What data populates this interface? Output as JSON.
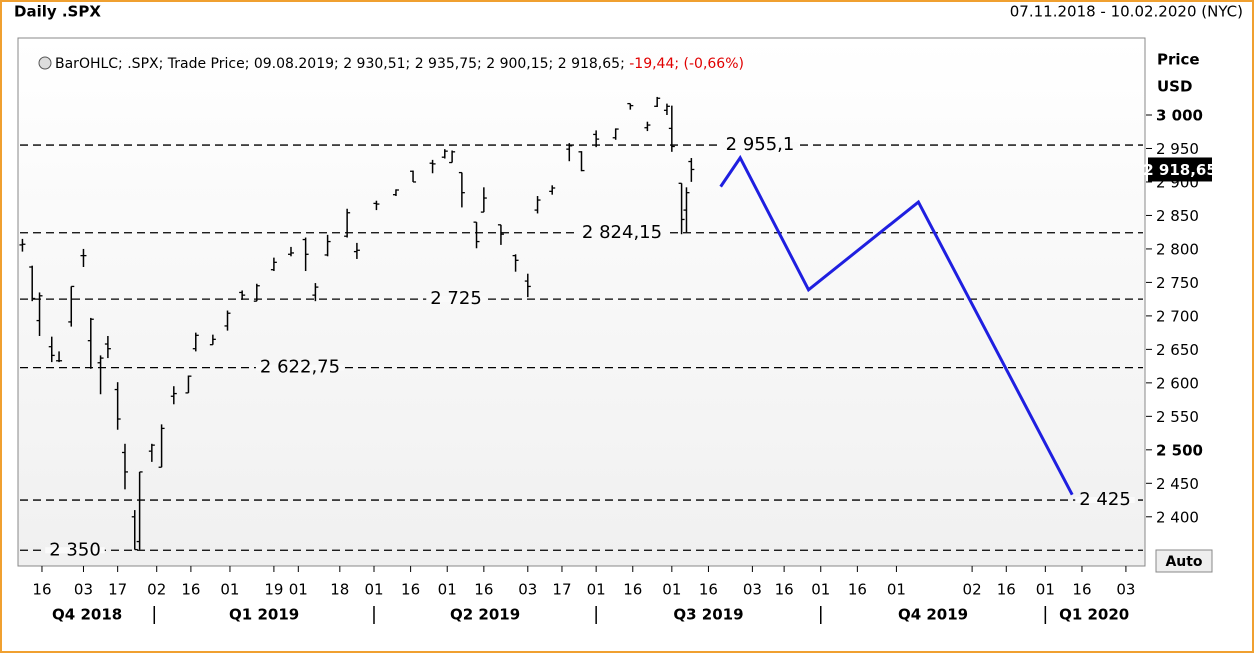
{
  "chart_data": {
    "type": "ohlc",
    "title": "Daily .SPX",
    "date_range": "07.11.2018 - 10.02.2020 (NYC)",
    "legend_text": "BarOHLC; .SPX; Trade Price; 09.08.2019; 2 930,51; 2 935,75; 2 900,15; 2 918,65; ",
    "legend_change": "-19,44; (-0,66%)",
    "axis_title": "Price",
    "axis_unit": "USD",
    "auto_button": "Auto",
    "last_price": {
      "value": 2918.65,
      "label": "2 918,65"
    },
    "color": "#000000",
    "xlim": [
      "2018-11-07",
      "2020-02-10"
    ],
    "ylim": [
      2328,
      3112
    ],
    "yticks": [
      {
        "value": 2400,
        "label": "2 400"
      },
      {
        "value": 2450,
        "label": "2 450"
      },
      {
        "value": 2500,
        "label": "2 500"
      },
      {
        "value": 2550,
        "label": "2 550"
      },
      {
        "value": 2600,
        "label": "2 600"
      },
      {
        "value": 2650,
        "label": "2 650"
      },
      {
        "value": 2700,
        "label": "2 700"
      },
      {
        "value": 2750,
        "label": "2 750"
      },
      {
        "value": 2800,
        "label": "2 800"
      },
      {
        "value": 2850,
        "label": "2 850"
      },
      {
        "value": 2900,
        "label": "2 900"
      },
      {
        "value": 2950,
        "label": "2 950"
      },
      {
        "value": 3000,
        "label": "3 000"
      }
    ],
    "xticks": [
      {
        "value": "2018-11-16",
        "label": "16"
      },
      {
        "value": "2018-12-03",
        "label": "03"
      },
      {
        "value": "2018-12-17",
        "label": "17"
      },
      {
        "value": "2019-01-02",
        "label": "02"
      },
      {
        "value": "2019-01-16",
        "label": "16"
      },
      {
        "value": "2019-02-01",
        "label": "01"
      },
      {
        "value": "2019-02-19",
        "label": "19"
      },
      {
        "value": "2019-03-01",
        "label": "01"
      },
      {
        "value": "2019-03-18",
        "label": "18"
      },
      {
        "value": "2019-04-01",
        "label": "01"
      },
      {
        "value": "2019-04-16",
        "label": "16"
      },
      {
        "value": "2019-05-01",
        "label": "01"
      },
      {
        "value": "2019-05-16",
        "label": "16"
      },
      {
        "value": "2019-06-03",
        "label": "03"
      },
      {
        "value": "2019-06-17",
        "label": "17"
      },
      {
        "value": "2019-07-01",
        "label": "01"
      },
      {
        "value": "2019-07-16",
        "label": "16"
      },
      {
        "value": "2019-08-01",
        "label": "01"
      },
      {
        "value": "2019-08-16",
        "label": "16"
      },
      {
        "value": "2019-09-03",
        "label": "03"
      },
      {
        "value": "2019-09-16",
        "label": "16"
      },
      {
        "value": "2019-10-01",
        "label": "01"
      },
      {
        "value": "2019-10-16",
        "label": "16"
      },
      {
        "value": "2019-11-01",
        "label": "01"
      },
      {
        "value": "2019-12-02",
        "label": "02"
      },
      {
        "value": "2019-12-16",
        "label": "16"
      },
      {
        "value": "2020-01-01",
        "label": "01"
      },
      {
        "value": "2020-01-16",
        "label": "16"
      },
      {
        "value": "2020-02-03",
        "label": "03"
      }
    ],
    "quarters": [
      {
        "value": "2018-10-01",
        "label": "Q4 2018"
      },
      {
        "value": "2019-01-01",
        "label": "Q1 2019"
      },
      {
        "value": "2019-04-01",
        "label": "Q2 2019"
      },
      {
        "value": "2019-07-01",
        "label": "Q3 2019"
      },
      {
        "value": "2019-10-01",
        "label": "Q4 2019"
      },
      {
        "value": "2020-01-01",
        "label": "Q1 2020"
      }
    ],
    "levels": [
      {
        "value": 2955.1,
        "label": "2 955,1"
      },
      {
        "value": 2824.15,
        "label": "2 824,15"
      },
      {
        "value": 2725,
        "label": "2 725"
      },
      {
        "value": 2622.75,
        "label": "2 622,75"
      },
      {
        "value": 2425,
        "label": "2 425"
      },
      {
        "value": 2350,
        "label": "2 350"
      }
    ],
    "ohlc": {
      "x": [
        "2018-11-08",
        "2018-11-12",
        "2018-11-15",
        "2018-11-20",
        "2018-11-23",
        "2018-11-28",
        "2018-12-03",
        "2018-12-06",
        "2018-12-10",
        "2018-12-13",
        "2018-12-17",
        "2018-12-20",
        "2018-12-24",
        "2018-12-26",
        "2018-12-31",
        "2019-01-04",
        "2019-01-09",
        "2019-01-15",
        "2019-01-18",
        "2019-01-25",
        "2019-01-31",
        "2019-02-06",
        "2019-02-12",
        "2019-02-19",
        "2019-02-26",
        "2019-03-04",
        "2019-03-08",
        "2019-03-13",
        "2019-03-21",
        "2019-03-25",
        "2019-04-02",
        "2019-04-10",
        "2019-04-17",
        "2019-04-25",
        "2019-04-30",
        "2019-05-03",
        "2019-05-07",
        "2019-05-13",
        "2019-05-16",
        "2019-05-23",
        "2019-05-29",
        "2019-06-03",
        "2019-06-07",
        "2019-06-13",
        "2019-06-20",
        "2019-06-25",
        "2019-07-01",
        "2019-07-09",
        "2019-07-15",
        "2019-07-22",
        "2019-07-26",
        "2019-07-30",
        "2019-08-01",
        "2019-08-05",
        "2019-08-07",
        "2019-08-09"
      ],
      "open": [
        2806,
        2773,
        2693,
        2654,
        2633,
        2691,
        2790,
        2663,
        2630,
        2658,
        2590,
        2496,
        2400,
        2363,
        2498,
        2474,
        2580,
        2585,
        2651,
        2657,
        2685,
        2735,
        2722,
        2769,
        2792,
        2814,
        2731,
        2791,
        2819,
        2796,
        2868,
        2881,
        2916,
        2928,
        2937,
        2929,
        2914,
        2840,
        2855,
        2836,
        2790,
        2752,
        2858,
        2886,
        2949,
        2945,
        2971,
        2966,
        3017,
        2981,
        3013,
        3007,
        2980,
        2898,
        2858,
        2930.51
      ],
      "high": [
        2815,
        2775,
        2735,
        2669,
        2647,
        2744,
        2800,
        2697,
        2641,
        2670,
        2601,
        2509,
        2410,
        2467,
        2509,
        2538,
        2595,
        2611,
        2675,
        2672,
        2708,
        2738,
        2748,
        2787,
        2803,
        2817,
        2749,
        2821,
        2860,
        2809,
        2872,
        2889,
        2917,
        2933,
        2949,
        2947,
        2914,
        2840,
        2892,
        2836,
        2792,
        2763,
        2879,
        2895,
        2958,
        2946,
        2977,
        2980,
        3017,
        2990,
        3027,
        3017,
        3014,
        2898,
        2892,
        2935.75
      ],
      "low": [
        2796,
        2722,
        2670,
        2631,
        2631,
        2684,
        2773,
        2621,
        2583,
        2637,
        2530,
        2441,
        2351,
        2351,
        2482,
        2474,
        2568,
        2585,
        2647,
        2657,
        2678,
        2724,
        2722,
        2767,
        2789,
        2767,
        2722,
        2789,
        2817,
        2785,
        2858,
        2879,
        2900,
        2913,
        2935,
        2929,
        2862,
        2801,
        2855,
        2806,
        2766,
        2728,
        2853,
        2881,
        2931,
        2916,
        2952,
        2963,
        3008,
        2976,
        3012,
        3000,
        2945,
        2822,
        2825,
        2900.15
      ],
      "close": [
        2807,
        2726,
        2730,
        2641,
        2633,
        2744,
        2790,
        2695,
        2637,
        2651,
        2546,
        2467,
        2351,
        2467,
        2507,
        2532,
        2584,
        2610,
        2671,
        2665,
        2704,
        2731,
        2745,
        2780,
        2794,
        2792,
        2743,
        2811,
        2854,
        2798,
        2867,
        2888,
        2900,
        2927,
        2946,
        2945,
        2884,
        2811,
        2876,
        2822,
        2783,
        2744,
        2873,
        2891,
        2954,
        2917,
        2964,
        2979,
        3014,
        2985,
        3025,
        3013,
        2953,
        2844,
        2884,
        2918.65
      ]
    },
    "projection": {
      "color": "#1f1fe0",
      "x": [
        "2019-08-21",
        "2019-08-29",
        "2019-09-26",
        "2019-11-10",
        "2020-01-12"
      ],
      "values": [
        2893,
        2936,
        2739,
        2870,
        2433
      ]
    }
  }
}
